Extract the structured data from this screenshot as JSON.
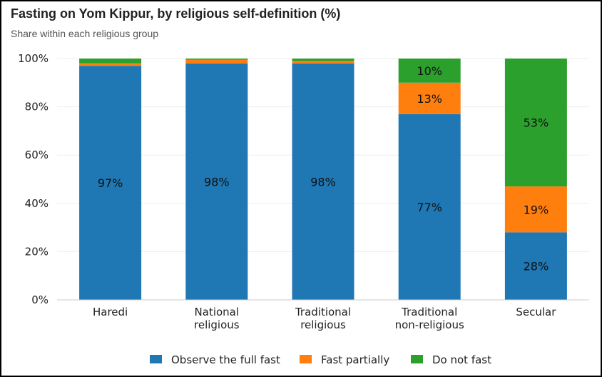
{
  "chart_data": {
    "type": "bar",
    "stacked": true,
    "title": "Fasting on Yom Kippur, by religious self-definition (%)",
    "subtitle": "Share within each religious group",
    "categories": [
      [
        "Haredi"
      ],
      [
        "National",
        "religious"
      ],
      [
        "Traditional",
        "religious"
      ],
      [
        "Traditional",
        "non-religious"
      ],
      [
        "Secular"
      ]
    ],
    "series": [
      {
        "name": "Observe the full fast",
        "color": "#1f77b4",
        "values": [
          97,
          98,
          98,
          77,
          28
        ]
      },
      {
        "name": "Fast partially",
        "color": "#ff7f0e",
        "values": [
          1,
          1.5,
          1,
          13,
          19
        ]
      },
      {
        "name": "Do not fast",
        "color": "#2ca02c",
        "values": [
          2,
          0.5,
          1,
          10,
          53
        ]
      }
    ],
    "data_labels": [
      [
        "97%",
        "",
        ""
      ],
      [
        "98%",
        "",
        ""
      ],
      [
        "98%",
        "",
        ""
      ],
      [
        "77%",
        "13%",
        "10%"
      ],
      [
        "28%",
        "19%",
        "53%"
      ]
    ],
    "ylim": [
      0,
      100
    ],
    "yticks": [
      0,
      20,
      40,
      60,
      80,
      100
    ],
    "ytick_labels": [
      "0%",
      "20%",
      "40%",
      "60%",
      "80%",
      "100%"
    ],
    "xlabel": "",
    "ylabel": "",
    "grid": true,
    "legend_position": "bottom"
  }
}
